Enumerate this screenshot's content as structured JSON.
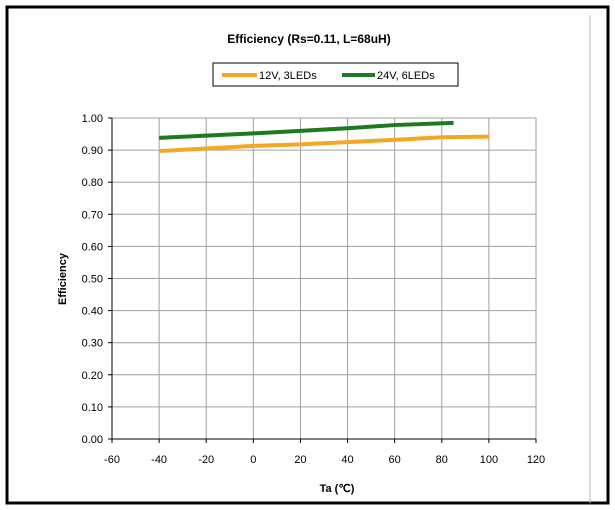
{
  "chart_data": {
    "type": "line",
    "title": "Efficiency (Rs=0.11, L=68uH)",
    "xlabel": "Ta (℃)",
    "ylabel": "Efficiency",
    "xlim": [
      -60,
      120
    ],
    "ylim": [
      0,
      1
    ],
    "xticks": [
      "-60",
      "-40",
      "-20",
      "0",
      "20",
      "40",
      "60",
      "80",
      "100",
      "120"
    ],
    "yticks": [
      "0.00",
      "0.10",
      "0.20",
      "0.30",
      "0.40",
      "0.50",
      "0.60",
      "0.70",
      "0.80",
      "0.90",
      "1.00"
    ],
    "grid": true,
    "legend_position": "top",
    "series": [
      {
        "name": "12V, 3LEDs",
        "color": "#F5A623",
        "x": [
          -40,
          -20,
          0,
          20,
          40,
          60,
          80,
          100
        ],
        "y": [
          0.897,
          0.905,
          0.913,
          0.918,
          0.925,
          0.932,
          0.94,
          0.942
        ]
      },
      {
        "name": "24V, 6LEDs",
        "color": "#1E7A1E",
        "x": [
          -40,
          -20,
          0,
          20,
          40,
          60,
          85
        ],
        "y": [
          0.938,
          0.945,
          0.952,
          0.96,
          0.968,
          0.978,
          0.985
        ]
      }
    ]
  }
}
